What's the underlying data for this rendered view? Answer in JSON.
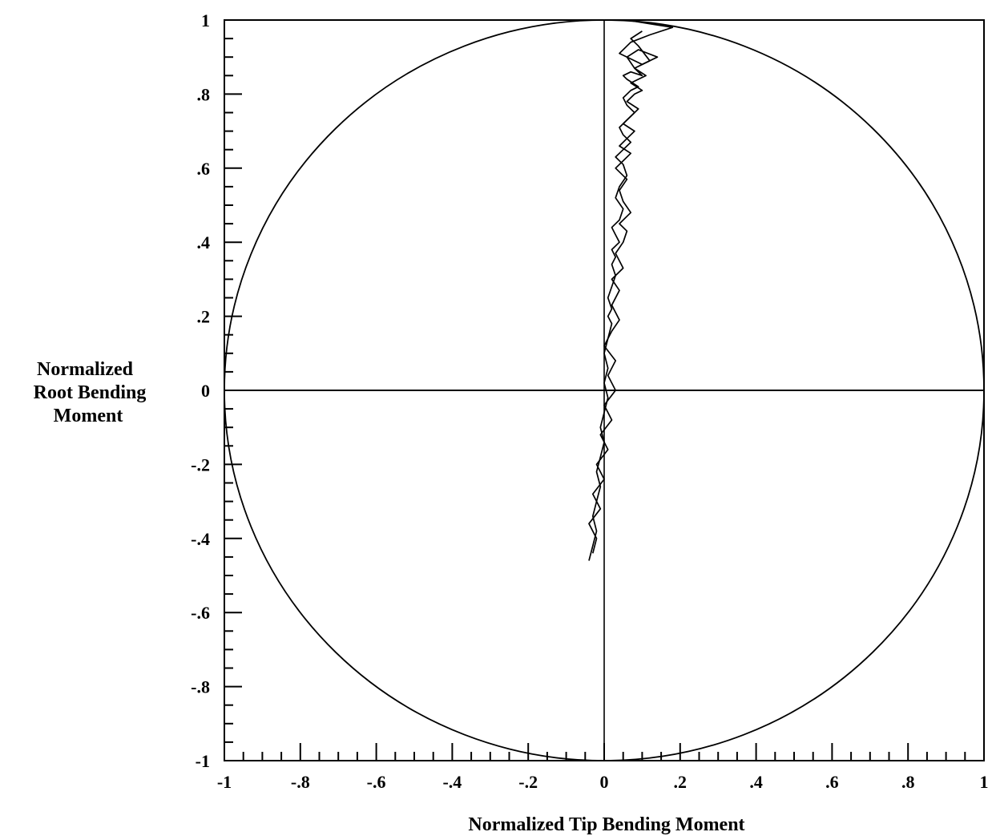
{
  "chart_data": {
    "type": "line",
    "title": "",
    "xlabel": "Normalized Tip Bending Moment",
    "ylabel": [
      "Normalized",
      "Root Bending",
      "Moment"
    ],
    "xlim": [
      -1,
      1
    ],
    "ylim": [
      -1,
      1
    ],
    "grid": false,
    "x_ticks": [
      -1,
      -0.8,
      -0.6,
      -0.4,
      -0.2,
      0,
      0.2,
      0.4,
      0.6,
      0.8,
      1
    ],
    "y_ticks": [
      -1,
      -0.8,
      -0.6,
      -0.4,
      -0.2,
      0,
      0.2,
      0.4,
      0.6,
      0.8,
      1
    ],
    "x_tick_labels": [
      "-1",
      "-.8",
      "-.6",
      "-.4",
      "-.2",
      "0",
      ".2",
      ".4",
      ".6",
      ".8",
      "1"
    ],
    "y_tick_labels": [
      "-1",
      "-.8",
      "-.6",
      "-.4",
      "-.2",
      "0",
      ".2",
      ".4",
      ".6",
      ".8",
      "1"
    ],
    "reference_lines": {
      "x": 0,
      "y": 0
    },
    "unit_circle": {
      "center": [
        0,
        0
      ],
      "radius": 1
    },
    "series": [
      {
        "x": [
          -0.04,
          -0.03,
          -0.02,
          -0.03,
          -0.02,
          -0.01,
          -0.02,
          -0.01,
          0.0,
          -0.01,
          0.0,
          0.01,
          0.0,
          0.01,
          0.0,
          0.01,
          0.02,
          0.01,
          0.02,
          0.01,
          0.02,
          0.03,
          0.02,
          0.03,
          0.02,
          0.04,
          0.03,
          0.02,
          0.04,
          0.05,
          0.03,
          0.04,
          0.06,
          0.05,
          0.03,
          0.05,
          0.07,
          0.05,
          0.04,
          0.06,
          0.08,
          0.06,
          0.05,
          0.07,
          0.09,
          0.06,
          0.05,
          0.07,
          0.1,
          0.08,
          0.06,
          0.09,
          0.14,
          0.1,
          0.04,
          0.07,
          0.12,
          0.18,
          0.12,
          0.06
        ],
        "y": [
          -0.46,
          -0.42,
          -0.38,
          -0.34,
          -0.3,
          -0.26,
          -0.22,
          -0.18,
          -0.14,
          -0.1,
          -0.06,
          -0.02,
          0.02,
          0.06,
          0.1,
          0.14,
          0.18,
          0.2,
          0.22,
          0.25,
          0.28,
          0.31,
          0.34,
          0.36,
          0.38,
          0.4,
          0.42,
          0.44,
          0.46,
          0.49,
          0.52,
          0.55,
          0.58,
          0.61,
          0.63,
          0.65,
          0.67,
          0.69,
          0.71,
          0.73,
          0.75,
          0.77,
          0.79,
          0.81,
          0.82,
          0.84,
          0.85,
          0.86,
          0.85,
          0.87,
          0.9,
          0.92,
          0.9,
          0.88,
          0.91,
          0.94,
          0.96,
          0.98,
          0.99,
          1.0
        ]
      },
      {
        "x": [
          -0.03,
          -0.02,
          -0.04,
          -0.01,
          -0.03,
          0.0,
          -0.02,
          0.01,
          -0.01,
          0.02,
          0.0,
          0.03,
          0.01,
          0.03,
          0.0,
          0.02,
          0.04,
          0.02,
          0.04,
          0.02,
          0.05,
          0.03,
          0.05,
          0.06,
          0.04,
          0.07,
          0.05,
          0.04,
          0.06,
          0.03,
          0.05,
          0.07,
          0.04,
          0.06,
          0.08,
          0.05,
          0.07,
          0.09,
          0.06,
          0.08,
          0.1,
          0.07,
          0.09,
          0.11,
          0.08,
          0.12,
          0.09,
          0.07,
          0.1
        ],
        "y": [
          -0.44,
          -0.4,
          -0.36,
          -0.32,
          -0.28,
          -0.24,
          -0.2,
          -0.16,
          -0.12,
          -0.08,
          -0.04,
          0.0,
          0.04,
          0.08,
          0.12,
          0.16,
          0.19,
          0.23,
          0.27,
          0.3,
          0.33,
          0.37,
          0.4,
          0.43,
          0.45,
          0.48,
          0.51,
          0.54,
          0.57,
          0.6,
          0.62,
          0.64,
          0.66,
          0.68,
          0.7,
          0.72,
          0.74,
          0.76,
          0.78,
          0.8,
          0.81,
          0.83,
          0.84,
          0.85,
          0.87,
          0.89,
          0.93,
          0.95,
          0.97
        ]
      }
    ]
  }
}
